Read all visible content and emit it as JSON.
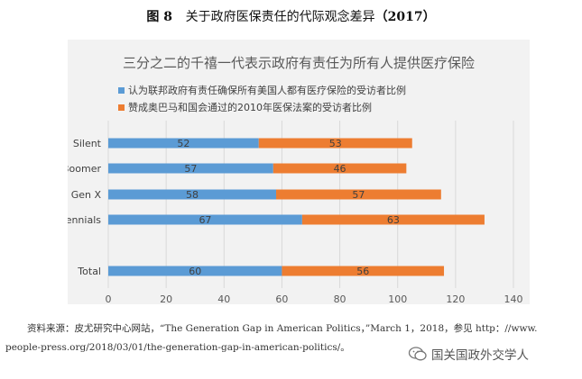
{
  "figure": {
    "number": "图 8",
    "caption": "关于政府医保责任的代际观念差异",
    "year": "（2017）"
  },
  "chart_data": {
    "type": "bar",
    "orientation": "horizontal",
    "stacked": true,
    "title": "三分之二的千禧一代表示政府有责任为所有人提供医疗保险",
    "categories": [
      "Silent",
      "Boomer",
      "Gen X",
      "Millennials",
      "Total"
    ],
    "series": [
      {
        "name": "认为联邦政府有责任确保所有美国人都有医疗保险的受访者比例",
        "color": "#5b9bd5",
        "values": [
          52,
          57,
          58,
          67,
          60
        ]
      },
      {
        "name": "赞成奥巴马和国会通过的2010年医保法案的受访者比例",
        "color": "#ed7d31",
        "values": [
          53,
          46,
          57,
          63,
          56
        ]
      }
    ],
    "xlim": [
      0,
      140
    ],
    "xticks": [
      0,
      20,
      40,
      60,
      80,
      100,
      120,
      140
    ],
    "grid": true,
    "legend_position": "top"
  },
  "source": {
    "line1": "资料来源：皮尤研究中心网站，“The Generation Gap in American Politics，”March 1，2018，参见 http：//www.",
    "line2": "people-press.org/2018/03/01/the-generation-gap-in-american-politics/。"
  },
  "watermark": {
    "text": "国关国政外交学人",
    "icon": "wechat-icon"
  }
}
